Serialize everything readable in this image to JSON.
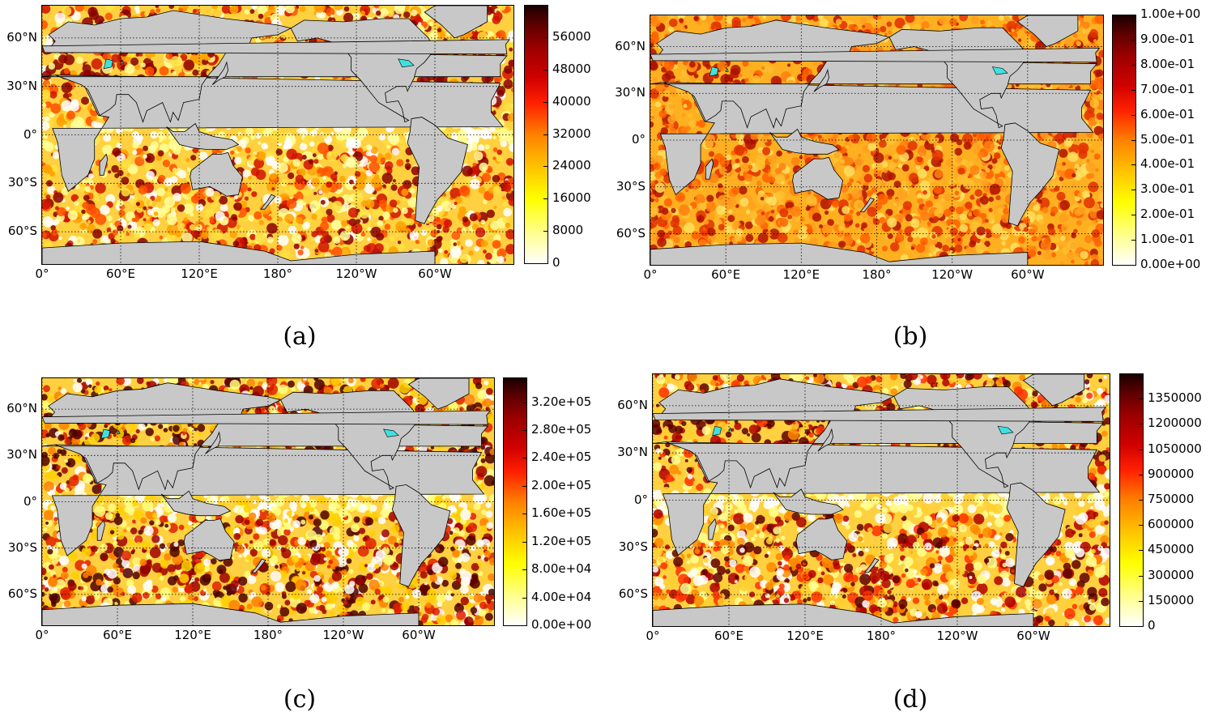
{
  "panels": [
    {
      "label": "(a)",
      "colorbar_ticks": [
        "56000",
        "48000",
        "40000",
        "32000",
        "24000",
        "16000",
        "8000",
        "0"
      ],
      "lat_labels": [
        "60°N",
        "30°N",
        "0°",
        "30°S",
        "60°S"
      ],
      "lon_labels": [
        "0°",
        "60°E",
        "120°E",
        "180°",
        "120°W",
        "60°W"
      ]
    },
    {
      "label": "(b)",
      "colorbar_ticks": [
        "1.00e+00",
        "9.00e-01",
        "8.00e-01",
        "7.00e-01",
        "6.00e-01",
        "5.00e-01",
        "4.00e-01",
        "3.00e-01",
        "2.00e-01",
        "1.00e-01",
        "0.00e+00"
      ],
      "lat_labels": [
        "60°N",
        "30°N",
        "0°",
        "30°S",
        "60°S"
      ],
      "lon_labels": [
        "0°",
        "60°E",
        "120°E",
        "180°",
        "120°W",
        "60°W"
      ]
    },
    {
      "label": "(c)",
      "colorbar_ticks": [
        "3.20e+05",
        "2.80e+05",
        "2.40e+05",
        "2.00e+05",
        "1.60e+05",
        "1.20e+05",
        "8.00e+04",
        "4.00e+04",
        "0.00e+00"
      ],
      "lat_labels": [
        "60°N",
        "30°N",
        "0°",
        "30°S",
        "60°S"
      ],
      "lon_labels": [
        "0°",
        "60°E",
        "120°E",
        "180°",
        "120°W",
        "60°W"
      ]
    },
    {
      "label": "(d)",
      "colorbar_ticks": [
        "1350000",
        "1200000",
        "1050000",
        "900000",
        "750000",
        "600000",
        "450000",
        "300000",
        "150000",
        "0"
      ],
      "lat_labels": [
        "60°N",
        "30°N",
        "0°",
        "30°S",
        "60°S"
      ],
      "lon_labels": [
        "0°",
        "60°E",
        "120°E",
        "180°",
        "120°W",
        "60°W"
      ]
    }
  ],
  "colors": {
    "land": "#c8c8c8",
    "lakes": "#40e0e0",
    "ocean_low": "#ffffff",
    "ocean_high": "#8b0000"
  }
}
